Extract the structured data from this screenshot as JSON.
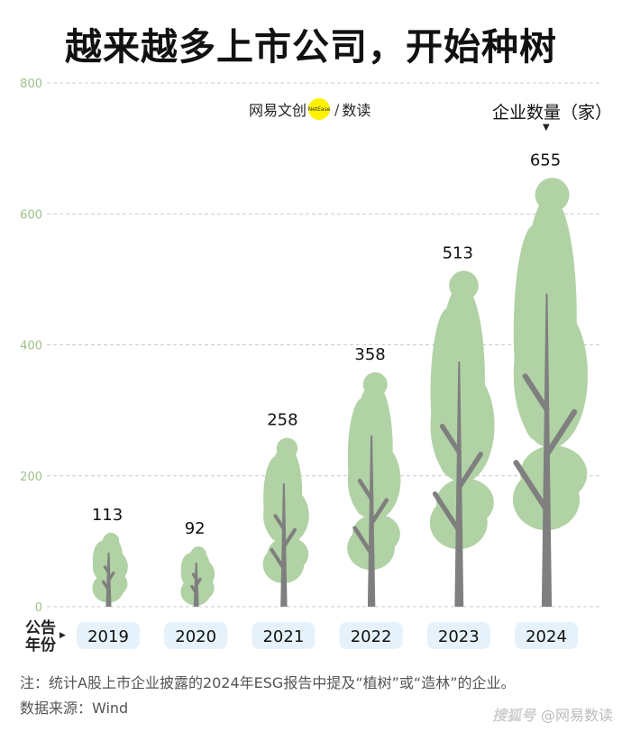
{
  "title": "越来越多上市公司，开始种树",
  "brand": {
    "left": "网易文创",
    "dot": "NetEase",
    "sep": "/",
    "right": "数读"
  },
  "unit_label": "企业数量（家）",
  "unit_arrow": "▼",
  "xlabel": "公告\n年份",
  "xlabel_arrow": "▶",
  "note": "注：统计A股上市企业披露的2024年ESG报告中提及“植树”或“造林”的企业。",
  "source": "数据来源：Wind",
  "watermark": {
    "logo": "搜狐号",
    "text": "@网易数读"
  },
  "colors": {
    "tree": "#b1d2a4",
    "trunk": "#7f7f7f",
    "axis_text": "#9fc08a",
    "grid": "#cccccc",
    "pill": "#e6f2fb"
  },
  "chart_data": {
    "type": "bar",
    "title": "越来越多上市公司，开始种树",
    "categories": [
      "2019",
      "2020",
      "2021",
      "2022",
      "2023",
      "2024"
    ],
    "values": [
      113,
      92,
      258,
      358,
      513,
      655
    ],
    "ylabel": "企业数量（家）",
    "xlabel": "公告年份",
    "ylim": [
      0,
      800
    ],
    "yticks": [
      0,
      200,
      400,
      600,
      800
    ],
    "grid": true,
    "marks": "tree-shaped bars"
  }
}
